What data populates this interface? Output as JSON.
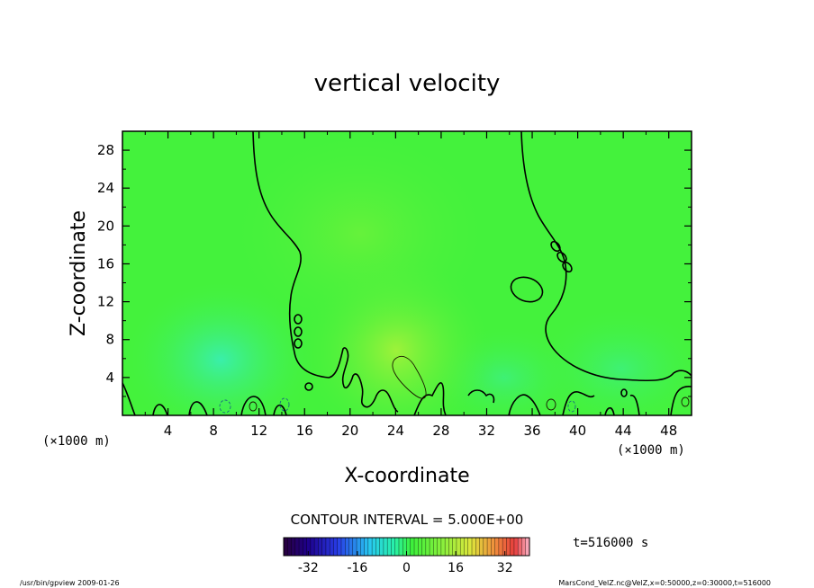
{
  "chart_data": {
    "type": "heatmap",
    "title": "vertical velocity",
    "xlabel": "X-coordinate",
    "ylabel": "Z-coordinate",
    "x_unit": "(×1000 m)",
    "y_unit": "(×1000 m)",
    "xlim": [
      0,
      50
    ],
    "ylim": [
      0,
      30
    ],
    "x_ticks": [
      "4",
      "8",
      "12",
      "16",
      "20",
      "24",
      "28",
      "32",
      "36",
      "40",
      "44",
      "48"
    ],
    "y_ticks": [
      "4",
      "8",
      "12",
      "16",
      "20",
      "24",
      "28"
    ],
    "contour_interval_label": "CONTOUR INTERVAL = 5.000E+00",
    "time_label": "t=516000 s",
    "colorbar": {
      "min": -40,
      "max": 40,
      "tick_labels": [
        "-32",
        "-16",
        "0",
        "16",
        "32"
      ],
      "tick_values": [
        -32,
        -16,
        0,
        16,
        32
      ]
    },
    "field_colors": {
      "background": "#44f23c",
      "updraft": "#8ff23a",
      "downdraft": "#3ef0a8",
      "contour": "#000000"
    },
    "footer_left": "/usr/bin/gpview  2009-01-26",
    "footer_right": "MarsCond_VelZ.nc@VelZ,x=0:50000,z=0:30000,t=516000"
  }
}
